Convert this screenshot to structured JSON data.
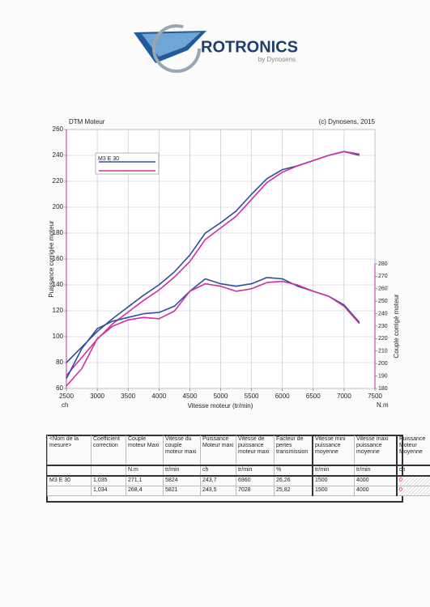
{
  "header": {
    "brand": "ROTRONICS",
    "tagline": "by Dynosens"
  },
  "chart_data": {
    "type": "line",
    "title": "DTM Moteur",
    "subtitle": "(c) Dynosens, 2015",
    "xlabel": "Vitesse moteur (tr/min)",
    "ylabel": "Puissance corrigée moteur",
    "y2label": "Couple corrigé moteur",
    "yunit": "ch",
    "y2unit": "N.m",
    "x": [
      2500,
      2750,
      3000,
      3250,
      3500,
      3750,
      4000,
      4250,
      4500,
      4750,
      5000,
      5250,
      5500,
      5750,
      6000,
      6250,
      6500,
      6750,
      7000,
      7250
    ],
    "series": [
      {
        "name": "M3 E 30",
        "color": "#2f4f9e",
        "axis": "y",
        "values": [
          80,
          92,
          104,
          114,
          123,
          132,
          140,
          150,
          163,
          180,
          188,
          197,
          210,
          222,
          229,
          232,
          236,
          240,
          243,
          240
        ]
      },
      {
        "color": "#d22fa3",
        "axis": "y",
        "values": [
          70,
          84,
          98,
          110,
          119,
          128,
          136,
          146,
          158,
          175,
          184,
          193,
          206,
          219,
          227,
          232,
          236,
          240,
          243,
          241
        ]
      },
      {
        "color": "#2f4f9e",
        "axis": "y2",
        "values": [
          188,
          212,
          228,
          234,
          237,
          240,
          241,
          246,
          258,
          268,
          264,
          262,
          264,
          269,
          268,
          262,
          258,
          254,
          247,
          233
        ]
      },
      {
        "color": "#d22fa3",
        "axis": "y2",
        "values": [
          182,
          196,
          220,
          230,
          235,
          237,
          236,
          242,
          258,
          264,
          262,
          258,
          260,
          265,
          266,
          263,
          258,
          254,
          246,
          232
        ]
      }
    ],
    "xlim": [
      2500,
      7500
    ],
    "xticks": [
      2500,
      3000,
      3500,
      4000,
      4500,
      5000,
      5500,
      6000,
      6500,
      7000,
      7500
    ],
    "ylim": [
      60,
      260
    ],
    "yticks": [
      60,
      80,
      100,
      120,
      140,
      160,
      180,
      200,
      220,
      240,
      260
    ],
    "y2lim": [
      180,
      280
    ],
    "y2ticks": [
      180,
      190,
      200,
      210,
      220,
      230,
      240,
      250,
      260,
      270,
      280
    ],
    "grid": true,
    "legend": "upper left"
  },
  "table": {
    "header": [
      "<Nom de la mesure>",
      "Coefficient correction",
      "Couple moteur Maxi",
      "Vitesse du couple moteur maxi",
      "Puissance Moteur maxi",
      "Vitesse de puissance moteur maxi",
      "Facteur de pertes transmission",
      "Vitesse mini puissance moyenne",
      "Vitesse maxi puissance moyenne",
      "Puissance Moteur Moyenne"
    ],
    "units": [
      null,
      null,
      "N.m",
      "tr/min",
      "ch",
      "tr/min",
      "%",
      "tr/min",
      "tr/min",
      "ch"
    ],
    "rows": [
      [
        "M3 E 30",
        "1,035",
        "271,1",
        "5824",
        "243,7",
        "6960",
        "26,26",
        "1500",
        "4000",
        "0"
      ],
      [
        null,
        "1,034",
        "268,4",
        "5821",
        "243,5",
        "7028",
        "25,82",
        "1500",
        "4000",
        "0"
      ]
    ]
  }
}
